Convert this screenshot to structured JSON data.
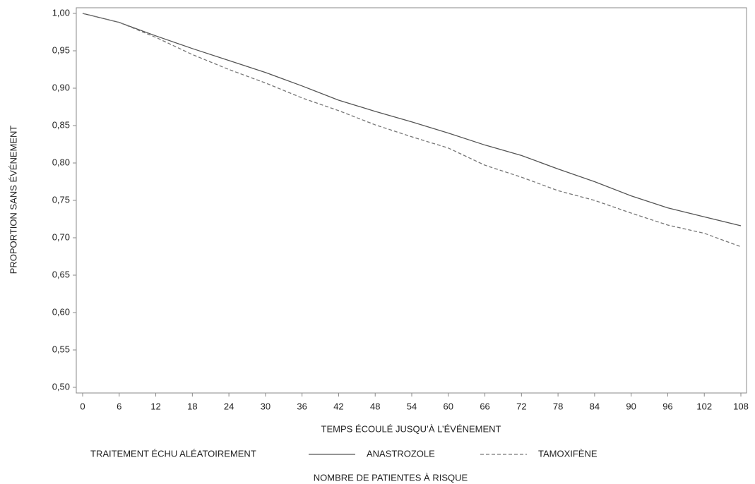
{
  "chart_data": {
    "type": "line",
    "y_label": "PROPORTION SANS ÉVÉNEMENT",
    "x_label": "TEMPS ÉCOULÉ JUSQU’À L’ÉVÉNEMENT",
    "legend_title": "TRAITEMENT ÉCHU ALÉATOIREMENT",
    "footer": "NOMBRE DE PATIENTES À RISQUE",
    "x": [
      0,
      6,
      12,
      18,
      24,
      30,
      36,
      42,
      48,
      54,
      60,
      66,
      72,
      78,
      84,
      90,
      96,
      102,
      108
    ],
    "series": [
      {
        "name": "ANASTROZOLE",
        "color": "#555555",
        "style": "solid",
        "values": [
          1.0,
          0.988,
          0.97,
          0.953,
          0.937,
          0.921,
          0.903,
          0.884,
          0.869,
          0.855,
          0.84,
          0.824,
          0.81,
          0.792,
          0.775,
          0.756,
          0.74,
          0.728,
          0.716
        ]
      },
      {
        "name": "TAMOXIFÈNE",
        "color": "#777777",
        "style": "dashed",
        "values": [
          1.0,
          0.988,
          0.968,
          0.945,
          0.925,
          0.907,
          0.887,
          0.87,
          0.851,
          0.835,
          0.82,
          0.797,
          0.781,
          0.763,
          0.75,
          0.733,
          0.717,
          0.706,
          0.688
        ]
      }
    ],
    "xlim": [
      0,
      108
    ],
    "xticks": [
      0,
      6,
      12,
      18,
      24,
      30,
      36,
      42,
      48,
      54,
      60,
      66,
      72,
      78,
      84,
      90,
      96,
      102,
      108
    ],
    "ylim": [
      0.5,
      1.0
    ],
    "yticks": [
      {
        "value": 0.5,
        "label": "0,50"
      },
      {
        "value": 0.55,
        "label": "0,55"
      },
      {
        "value": 0.6,
        "label": "0,60"
      },
      {
        "value": 0.65,
        "label": "0,65"
      },
      {
        "value": 0.7,
        "label": "0,70"
      },
      {
        "value": 0.75,
        "label": "0,75"
      },
      {
        "value": 0.8,
        "label": "0,80"
      },
      {
        "value": 0.85,
        "label": "0,85"
      },
      {
        "value": 0.9,
        "label": "0,90"
      },
      {
        "value": 0.95,
        "label": "0,95"
      },
      {
        "value": 1.0,
        "label": "1,00"
      }
    ],
    "grid": false
  }
}
